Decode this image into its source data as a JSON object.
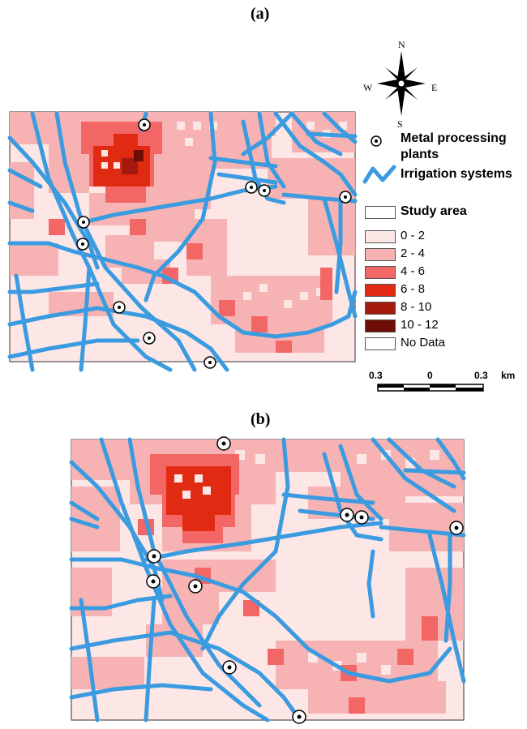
{
  "panels": {
    "a_label": "(a)",
    "b_label": "(b)"
  },
  "compass": {
    "n": "N",
    "s": "S",
    "e": "E",
    "w": "W"
  },
  "legend": {
    "plants_label_line1": "Metal processing",
    "plants_label_line2": "plants",
    "irrigation_label": "Irrigation systems",
    "study_area_label": "Study area",
    "classes": [
      {
        "label": "0 - 2",
        "color": "#fce6e6"
      },
      {
        "label": "2 - 4",
        "color": "#f7b3b3"
      },
      {
        "label": "4 - 6",
        "color": "#f26666"
      },
      {
        "label": "6 - 8",
        "color": "#e02a12"
      },
      {
        "label": "8 - 10",
        "color": "#a51a0e"
      },
      {
        "label": "10 - 12",
        "color": "#6e0c06"
      },
      {
        "label": "No Data",
        "color": "#ffffff"
      }
    ]
  },
  "scale_bar": {
    "left": "0.3",
    "mid": "0",
    "right": "0.3",
    "unit": "km"
  },
  "colors": {
    "river": "#3a9be0",
    "background": "#fce6e6"
  }
}
